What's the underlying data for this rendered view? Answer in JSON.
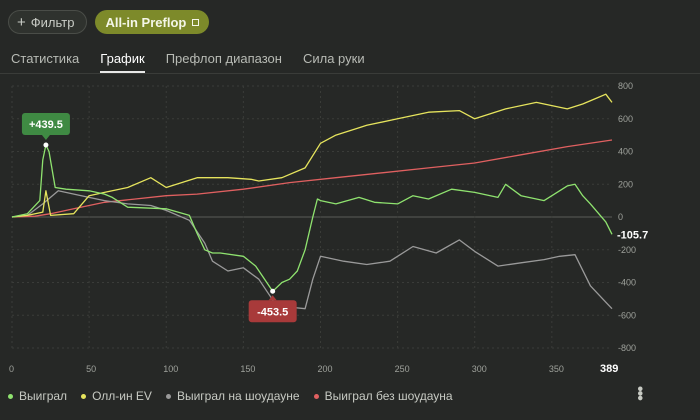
{
  "topbar": {
    "filter_label": "Фильтр",
    "filter_icon": "plus-icon",
    "active_chip_label": "All-in Preflop"
  },
  "tabs": [
    {
      "label": "Статистика",
      "active": false
    },
    {
      "label": "График",
      "active": true
    },
    {
      "label": "Префлоп диапазон",
      "active": false
    },
    {
      "label": "Сила руки",
      "active": false
    }
  ],
  "colors": {
    "won": "#8fe36f",
    "allin_ev": "#e6e45d",
    "showdown": "#9a9a9a",
    "non_showdown": "#e06060",
    "max_badge": "#3f8a43",
    "min_badge": "#a83a3a"
  },
  "chart_data": {
    "type": "line",
    "xlim": [
      0,
      389
    ],
    "ylim": [
      -800,
      800
    ],
    "x_ticks": [
      "0",
      "50",
      "100",
      "150",
      "200",
      "250",
      "300",
      "350"
    ],
    "x_end_label": "389",
    "y_ticks": [
      "800",
      "600",
      "400",
      "200",
      "0",
      "-200",
      "-400",
      "-600",
      "-800"
    ],
    "annotations": {
      "max_label": "+439.5",
      "max_x": 22,
      "max_y": 439.5,
      "min_label": "-453.5",
      "min_x": 169,
      "min_y": -453.5,
      "end_label": "-105.7"
    },
    "series": [
      {
        "name": "Выиграл",
        "color": "#8fe36f",
        "x": [
          0,
          10,
          18,
          20,
          22,
          24,
          28,
          35,
          50,
          60,
          65,
          75,
          100,
          115,
          120,
          125,
          130,
          135,
          150,
          158,
          169,
          175,
          180,
          185,
          190,
          195,
          198,
          200,
          210,
          225,
          235,
          250,
          260,
          270,
          285,
          300,
          315,
          320,
          330,
          345,
          355,
          360,
          365,
          370,
          375,
          385,
          389
        ],
        "y": [
          0,
          20,
          100,
          350,
          439.5,
          400,
          180,
          170,
          160,
          140,
          120,
          60,
          50,
          10,
          -100,
          -200,
          -220,
          -220,
          -240,
          -300,
          -453.5,
          -400,
          -380,
          -330,
          -200,
          0,
          110,
          100,
          80,
          120,
          90,
          80,
          130,
          110,
          170,
          150,
          120,
          200,
          130,
          100,
          160,
          190,
          200,
          130,
          80,
          -30,
          -105.7
        ]
      },
      {
        "name": "Олл-ин EV",
        "color": "#e6e45d",
        "x": [
          0,
          10,
          20,
          22,
          25,
          40,
          50,
          60,
          75,
          90,
          100,
          120,
          140,
          155,
          160,
          175,
          190,
          200,
          210,
          230,
          250,
          270,
          290,
          300,
          320,
          340,
          360,
          370,
          380,
          385,
          389
        ],
        "y": [
          0,
          10,
          30,
          160,
          10,
          20,
          130,
          150,
          180,
          240,
          180,
          240,
          240,
          230,
          220,
          240,
          300,
          450,
          500,
          560,
          600,
          640,
          650,
          600,
          660,
          700,
          660,
          690,
          730,
          750,
          700
        ]
      },
      {
        "name": "Выиграл на шоудауне",
        "color": "#9a9a9a",
        "x": [
          0,
          10,
          20,
          30,
          45,
          60,
          75,
          90,
          100,
          115,
          125,
          130,
          140,
          150,
          160,
          170,
          180,
          190,
          195,
          200,
          215,
          230,
          245,
          260,
          275,
          290,
          300,
          315,
          330,
          345,
          355,
          365,
          375,
          385,
          389
        ],
        "y": [
          0,
          10,
          80,
          160,
          130,
          100,
          80,
          70,
          40,
          -20,
          -160,
          -270,
          -330,
          -310,
          -380,
          -520,
          -550,
          -560,
          -380,
          -240,
          -270,
          -290,
          -270,
          -180,
          -220,
          -140,
          -210,
          -300,
          -280,
          -260,
          -240,
          -230,
          -420,
          -520,
          -560
        ]
      },
      {
        "name": "Выиграл без шоудауна",
        "color": "#e06060",
        "x": [
          0,
          15,
          25,
          40,
          60,
          80,
          100,
          120,
          150,
          180,
          210,
          240,
          270,
          300,
          330,
          360,
          389
        ],
        "y": [
          0,
          5,
          20,
          50,
          90,
          110,
          130,
          140,
          170,
          210,
          240,
          270,
          300,
          330,
          380,
          430,
          470
        ]
      }
    ]
  },
  "legend": [
    {
      "label": "Выиграл",
      "color": "#8fe36f"
    },
    {
      "label": "Олл-ин EV",
      "color": "#e6e45d"
    },
    {
      "label": "Выиграл на шоудауне",
      "color": "#9a9a9a"
    },
    {
      "label": "Выиграл без шоудауна",
      "color": "#e06060"
    }
  ],
  "more_icon": "vertical-dots-icon"
}
